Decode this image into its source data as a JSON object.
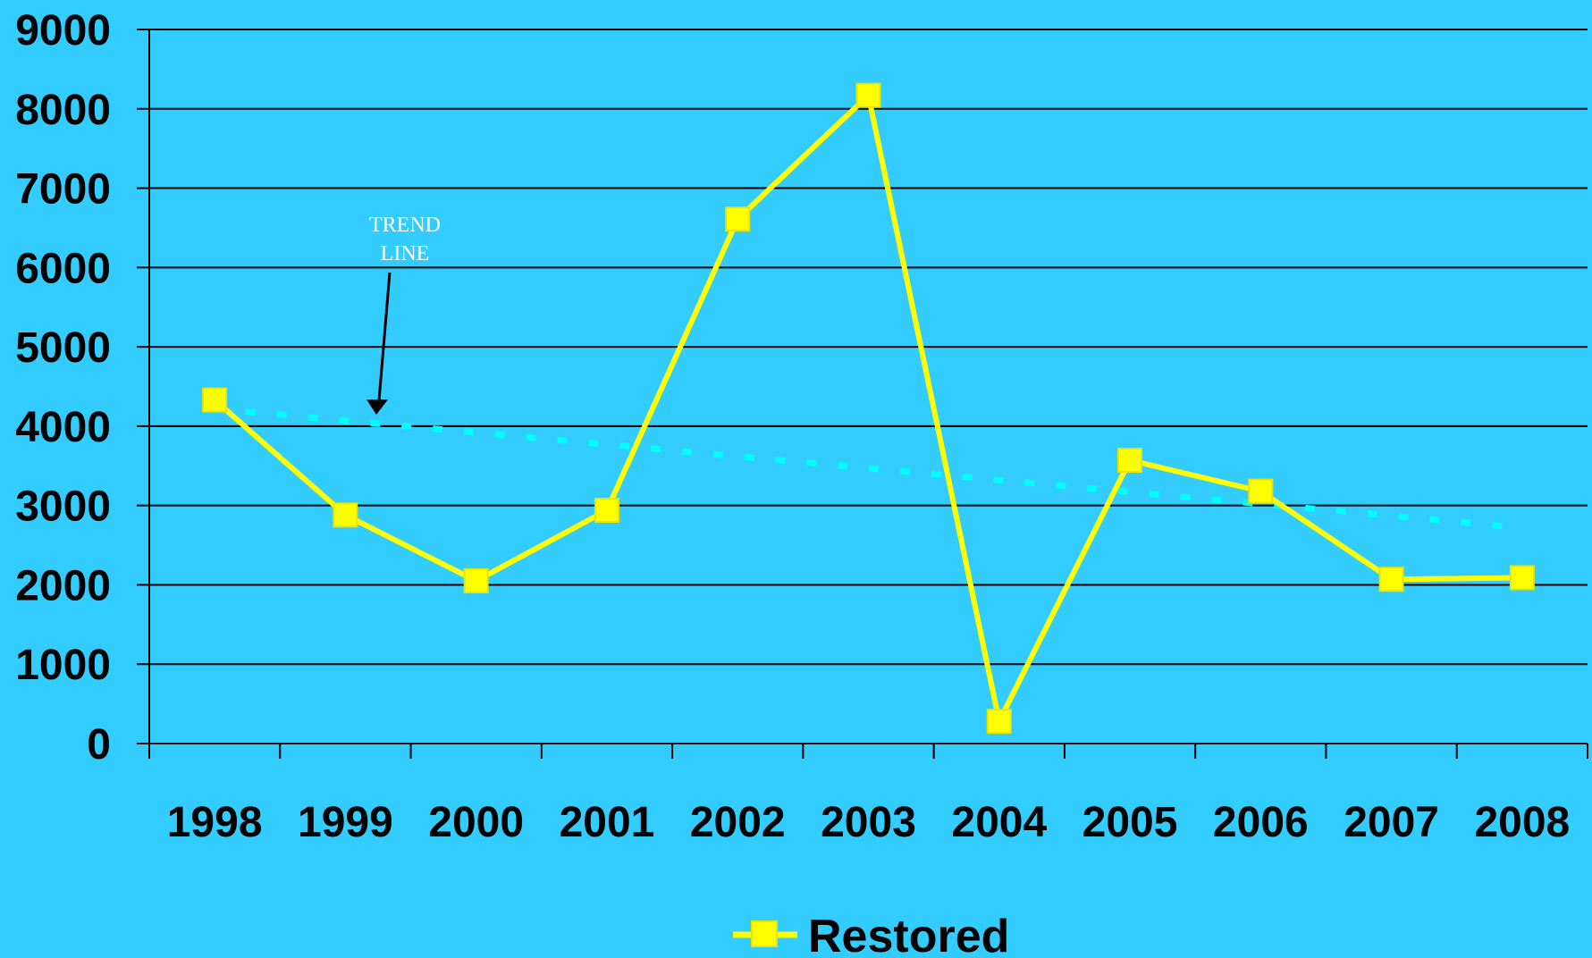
{
  "chart_data": {
    "type": "line",
    "categories": [
      "1998",
      "1999",
      "2000",
      "2001",
      "2002",
      "2003",
      "2004",
      "2005",
      "2006",
      "2007",
      "2008"
    ],
    "series": [
      {
        "name": "Restored",
        "values": [
          4330,
          2880,
          2050,
          2940,
          6610,
          8170,
          280,
          3570,
          3180,
          2070,
          2090
        ],
        "color": "#FFFF00",
        "marker": "square"
      }
    ],
    "trendline": {
      "kind": "linear",
      "start": 4220,
      "end": 2720,
      "color": "#00FFFF",
      "style": "dotted"
    },
    "annotation": {
      "lines": [
        "TREND",
        "LINE"
      ]
    },
    "ylim": [
      0,
      9000
    ],
    "yticks": [
      "0",
      "1000",
      "2000",
      "3000",
      "4000",
      "5000",
      "6000",
      "7000",
      "8000",
      "9000"
    ],
    "grid": true,
    "legend": "bottom-center",
    "background": "#33CCFF"
  }
}
